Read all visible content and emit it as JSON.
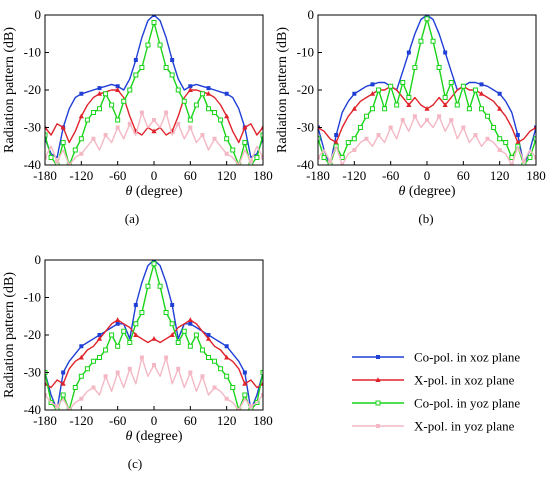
{
  "figure": {
    "captions": [
      "(a)",
      "(b)",
      "(c)"
    ],
    "legend": [
      {
        "label": "Co-pol. in xoz plane",
        "color": "#1f3fd6",
        "marker": "square-filled"
      },
      {
        "label": "X-pol. in xoz plane",
        "color": "#e0232b",
        "marker": "triangle-filled"
      },
      {
        "label": "Co-pol. in yoz plane",
        "color": "#19d419",
        "marker": "square-open"
      },
      {
        "label": "X-pol. in yoz plane",
        "color": "#f4b8c4",
        "marker": "square-filled"
      }
    ]
  },
  "chart_data": [
    {
      "type": "line",
      "xlabel_symbol": "θ",
      "xlabel_text": " (degree)",
      "ylabel": "Radiation pattern (dB)",
      "xlim": [
        -180,
        180
      ],
      "ylim": [
        -40,
        0
      ],
      "xticks": [
        -180,
        -120,
        -60,
        0,
        60,
        120,
        180
      ],
      "yticks": [
        0,
        -10,
        -20,
        -30,
        -40
      ],
      "grid": false,
      "caption": "(a)",
      "series": [
        {
          "name": "Co-pol. in xoz plane",
          "color": "#1f3fd6",
          "x": [
            -180,
            -170,
            -160,
            -150,
            -140,
            -130,
            -120,
            -110,
            -100,
            -90,
            -80,
            -70,
            -60,
            -50,
            -40,
            -30,
            -20,
            -10,
            0,
            10,
            20,
            30,
            40,
            50,
            60,
            70,
            80,
            90,
            100,
            110,
            120,
            130,
            140,
            150,
            160,
            170,
            180
          ],
          "y": [
            -33,
            -37,
            -38,
            -30,
            -25,
            -22,
            -21,
            -20.5,
            -20,
            -19.5,
            -19,
            -18.5,
            -19,
            -20,
            -17,
            -12,
            -6,
            -1.5,
            0,
            -1.5,
            -6,
            -12,
            -17,
            -20,
            -19,
            -18.5,
            -19,
            -19.5,
            -20,
            -20.5,
            -21,
            -22,
            -25,
            -30,
            -38,
            -37,
            -33
          ]
        },
        {
          "name": "X-pol. in xoz plane",
          "color": "#e0232b",
          "x": [
            -180,
            -170,
            -160,
            -150,
            -140,
            -130,
            -120,
            -110,
            -100,
            -90,
            -80,
            -70,
            -60,
            -50,
            -40,
            -30,
            -20,
            -10,
            0,
            10,
            20,
            30,
            40,
            50,
            60,
            70,
            80,
            90,
            100,
            110,
            120,
            130,
            140,
            150,
            160,
            170,
            180
          ],
          "y": [
            -30,
            -32,
            -29,
            -30,
            -34,
            -31,
            -27,
            -24,
            -22,
            -21,
            -20.5,
            -20,
            -20,
            -22,
            -27,
            -31,
            -32,
            -30,
            -31,
            -30,
            -32,
            -31,
            -27,
            -22,
            -20,
            -20,
            -20.5,
            -21,
            -22,
            -24,
            -27,
            -31,
            -34,
            -30,
            -29,
            -32,
            -30
          ]
        },
        {
          "name": "Co-pol. in yoz plane",
          "color": "#19d419",
          "x": [
            -180,
            -170,
            -160,
            -150,
            -140,
            -130,
            -120,
            -110,
            -100,
            -90,
            -80,
            -70,
            -60,
            -50,
            -40,
            -30,
            -20,
            -10,
            0,
            10,
            20,
            30,
            40,
            50,
            60,
            70,
            80,
            90,
            100,
            110,
            120,
            130,
            140,
            150,
            160,
            170,
            180
          ],
          "y": [
            -32,
            -38,
            -40,
            -34,
            -40,
            -36,
            -33,
            -28,
            -26,
            -25,
            -21,
            -24,
            -28,
            -23,
            -20,
            -16,
            -14,
            -8,
            -2,
            -8,
            -14,
            -16,
            -20,
            -23,
            -28,
            -24,
            -21,
            -25,
            -26,
            -28,
            -33,
            -36,
            -40,
            -34,
            -40,
            -38,
            -32
          ]
        },
        {
          "name": "X-pol. in yoz plane",
          "color": "#f4b8c4",
          "x": [
            -180,
            -170,
            -160,
            -150,
            -140,
            -130,
            -120,
            -110,
            -100,
            -90,
            -80,
            -70,
            -60,
            -50,
            -40,
            -30,
            -20,
            -10,
            0,
            10,
            20,
            30,
            40,
            50,
            60,
            70,
            80,
            90,
            100,
            110,
            120,
            130,
            140,
            150,
            160,
            170,
            180
          ],
          "y": [
            -38,
            -35,
            -39,
            -36,
            -40,
            -38,
            -37,
            -35,
            -33,
            -36,
            -32,
            -34,
            -30,
            -33,
            -29,
            -32,
            -26,
            -30,
            -28,
            -30,
            -26,
            -32,
            -29,
            -33,
            -30,
            -34,
            -32,
            -36,
            -33,
            -35,
            -37,
            -38,
            -40,
            -36,
            -39,
            -35,
            -38
          ]
        }
      ]
    },
    {
      "type": "line",
      "xlabel_symbol": "θ",
      "xlabel_text": " (degree)",
      "ylabel": "Radiation pattern (dB)",
      "xlim": [
        -180,
        180
      ],
      "ylim": [
        -40,
        0
      ],
      "xticks": [
        -180,
        -120,
        -60,
        0,
        60,
        120,
        180
      ],
      "yticks": [
        0,
        -10,
        -20,
        -30,
        -40
      ],
      "grid": false,
      "caption": "(b)",
      "series": [
        {
          "name": "Co-pol. in xoz plane",
          "color": "#1f3fd6",
          "x": [
            -180,
            -170,
            -160,
            -150,
            -140,
            -130,
            -120,
            -110,
            -100,
            -90,
            -80,
            -70,
            -60,
            -50,
            -40,
            -30,
            -20,
            -10,
            0,
            10,
            20,
            30,
            40,
            50,
            60,
            70,
            80,
            90,
            100,
            110,
            120,
            130,
            140,
            150,
            160,
            170,
            180
          ],
          "y": [
            -30,
            -36,
            -40,
            -32,
            -26,
            -23,
            -21,
            -20,
            -19,
            -18.5,
            -18,
            -18,
            -19,
            -20,
            -15,
            -10,
            -5,
            -1.2,
            0,
            -1.2,
            -5,
            -10,
            -15,
            -20,
            -19,
            -18,
            -18,
            -18.5,
            -19,
            -20,
            -21,
            -23,
            -26,
            -32,
            -40,
            -36,
            -30
          ]
        },
        {
          "name": "X-pol. in xoz plane",
          "color": "#e0232b",
          "x": [
            -180,
            -170,
            -160,
            -150,
            -140,
            -130,
            -120,
            -110,
            -100,
            -90,
            -80,
            -70,
            -60,
            -50,
            -40,
            -30,
            -20,
            -10,
            0,
            10,
            20,
            30,
            40,
            50,
            60,
            70,
            80,
            90,
            100,
            110,
            120,
            130,
            140,
            150,
            160,
            170,
            180
          ],
          "y": [
            -30,
            -31,
            -33,
            -34,
            -30,
            -27,
            -25,
            -23,
            -22,
            -21,
            -20,
            -20,
            -19,
            -20,
            -22,
            -24,
            -22,
            -24,
            -25,
            -24,
            -22,
            -24,
            -22,
            -20,
            -19,
            -20,
            -20,
            -21,
            -22,
            -23,
            -25,
            -27,
            -30,
            -34,
            -33,
            -31,
            -30
          ]
        },
        {
          "name": "Co-pol. in yoz plane",
          "color": "#19d419",
          "x": [
            -180,
            -170,
            -160,
            -150,
            -140,
            -130,
            -120,
            -110,
            -100,
            -90,
            -80,
            -70,
            -60,
            -50,
            -40,
            -30,
            -20,
            -10,
            0,
            10,
            20,
            30,
            40,
            50,
            60,
            70,
            80,
            90,
            100,
            110,
            120,
            130,
            140,
            150,
            160,
            170,
            180
          ],
          "y": [
            -33,
            -38,
            -40,
            -35,
            -38,
            -34,
            -33,
            -30,
            -27,
            -25,
            -20,
            -25,
            -19,
            -24,
            -18,
            -22,
            -14,
            -7,
            -1,
            -7,
            -14,
            -22,
            -18,
            -24,
            -19,
            -25,
            -20,
            -25,
            -27,
            -30,
            -33,
            -34,
            -38,
            -35,
            -40,
            -38,
            -33
          ]
        },
        {
          "name": "X-pol. in yoz plane",
          "color": "#f4b8c4",
          "x": [
            -180,
            -170,
            -160,
            -150,
            -140,
            -130,
            -120,
            -110,
            -100,
            -90,
            -80,
            -70,
            -60,
            -50,
            -40,
            -30,
            -20,
            -10,
            0,
            10,
            20,
            30,
            40,
            50,
            60,
            70,
            80,
            90,
            100,
            110,
            120,
            130,
            140,
            150,
            160,
            170,
            180
          ],
          "y": [
            -38,
            -36,
            -39,
            -35,
            -40,
            -37,
            -36,
            -34,
            -33,
            -35,
            -32,
            -34,
            -30,
            -33,
            -28,
            -31,
            -27,
            -30,
            -28,
            -30,
            -27,
            -31,
            -28,
            -33,
            -30,
            -34,
            -32,
            -35,
            -33,
            -34,
            -36,
            -37,
            -40,
            -35,
            -39,
            -36,
            -38
          ]
        }
      ]
    },
    {
      "type": "line",
      "xlabel_symbol": "θ",
      "xlabel_text": " (degree)",
      "ylabel": "Radiation pattern (dB)",
      "xlim": [
        -180,
        180
      ],
      "ylim": [
        -40,
        0
      ],
      "xticks": [
        -180,
        -120,
        -60,
        0,
        60,
        120,
        180
      ],
      "yticks": [
        0,
        -10,
        -20,
        -30,
        -40
      ],
      "grid": false,
      "caption": "(c)",
      "series": [
        {
          "name": "Co-pol. in xoz plane",
          "color": "#1f3fd6",
          "x": [
            -180,
            -170,
            -160,
            -150,
            -140,
            -130,
            -120,
            -110,
            -100,
            -90,
            -80,
            -70,
            -60,
            -50,
            -40,
            -30,
            -20,
            -10,
            0,
            10,
            20,
            30,
            40,
            50,
            60,
            70,
            80,
            90,
            100,
            110,
            120,
            130,
            140,
            150,
            160,
            170,
            180
          ],
          "y": [
            -30,
            -36,
            -40,
            -30,
            -27,
            -25,
            -23,
            -22,
            -21,
            -20,
            -19,
            -18,
            -17,
            -17,
            -21,
            -12,
            -6,
            -1.5,
            0,
            -1.5,
            -6,
            -12,
            -21,
            -17,
            -17,
            -18,
            -19,
            -20,
            -21,
            -22,
            -23,
            -25,
            -27,
            -30,
            -40,
            -36,
            -30
          ]
        },
        {
          "name": "X-pol. in xoz plane",
          "color": "#e0232b",
          "x": [
            -180,
            -170,
            -160,
            -150,
            -140,
            -130,
            -120,
            -110,
            -100,
            -90,
            -80,
            -70,
            -60,
            -50,
            -40,
            -30,
            -20,
            -10,
            0,
            10,
            20,
            30,
            40,
            50,
            60,
            70,
            80,
            90,
            100,
            110,
            120,
            130,
            140,
            150,
            160,
            170,
            180
          ],
          "y": [
            -33,
            -34,
            -32,
            -33,
            -29,
            -27,
            -26,
            -24,
            -23,
            -21,
            -19,
            -17,
            -16,
            -17,
            -18,
            -20,
            -21,
            -22,
            -21,
            -22,
            -21,
            -20,
            -18,
            -17,
            -16,
            -17,
            -19,
            -21,
            -23,
            -24,
            -26,
            -27,
            -29,
            -33,
            -32,
            -34,
            -33
          ]
        },
        {
          "name": "Co-pol. in yoz plane",
          "color": "#19d419",
          "x": [
            -180,
            -170,
            -160,
            -150,
            -140,
            -130,
            -120,
            -110,
            -100,
            -90,
            -80,
            -70,
            -60,
            -50,
            -40,
            -30,
            -20,
            -10,
            0,
            10,
            20,
            30,
            40,
            50,
            60,
            70,
            80,
            90,
            100,
            110,
            120,
            130,
            140,
            150,
            160,
            170,
            180
          ],
          "y": [
            -30,
            -38,
            -40,
            -36,
            -40,
            -34,
            -31,
            -29,
            -27,
            -26,
            -24,
            -20,
            -23,
            -19,
            -22,
            -17,
            -14,
            -7,
            -1,
            -7,
            -14,
            -17,
            -22,
            -19,
            -23,
            -20,
            -24,
            -26,
            -27,
            -29,
            -31,
            -34,
            -40,
            -36,
            -40,
            -38,
            -30
          ]
        },
        {
          "name": "X-pol. in yoz plane",
          "color": "#f4b8c4",
          "x": [
            -180,
            -170,
            -160,
            -150,
            -140,
            -130,
            -120,
            -110,
            -100,
            -90,
            -80,
            -70,
            -60,
            -50,
            -40,
            -30,
            -20,
            -10,
            0,
            10,
            20,
            30,
            40,
            50,
            60,
            70,
            80,
            90,
            100,
            110,
            120,
            130,
            140,
            150,
            160,
            170,
            180
          ],
          "y": [
            -36,
            -38,
            -39,
            -37,
            -40,
            -38,
            -37,
            -35,
            -34,
            -36,
            -31,
            -35,
            -30,
            -34,
            -29,
            -33,
            -26,
            -31,
            -28,
            -31,
            -26,
            -33,
            -29,
            -34,
            -30,
            -35,
            -31,
            -36,
            -34,
            -35,
            -37,
            -38,
            -40,
            -37,
            -39,
            -38,
            -36
          ]
        }
      ]
    }
  ]
}
